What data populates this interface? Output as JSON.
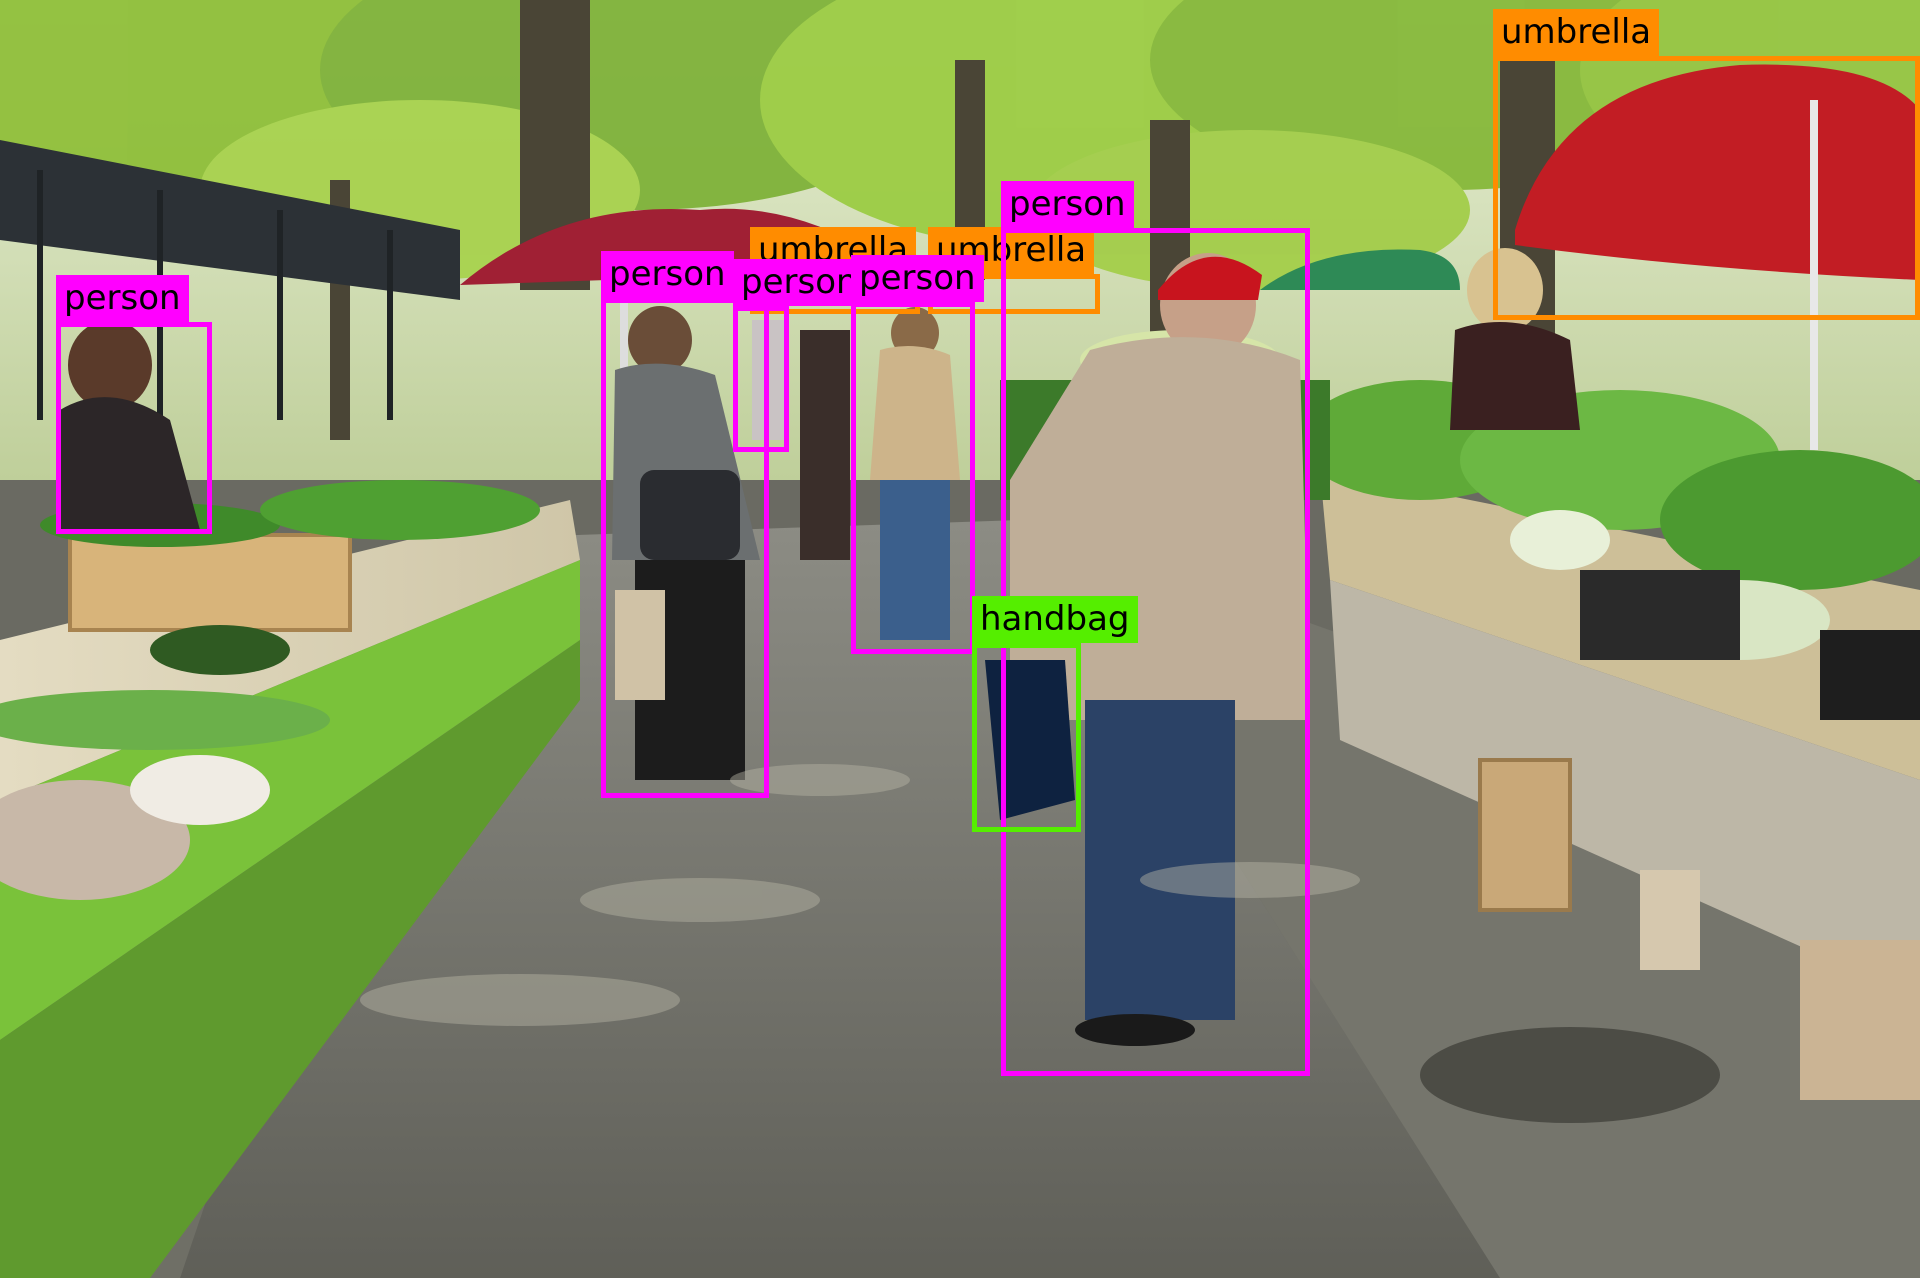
{
  "image": {
    "description_free_labels_only": true
  },
  "colors": {
    "person": "#ff00ff",
    "umbrella": "#ff8c00",
    "handbag": "#55ee00",
    "label_text": "#000000"
  },
  "detections": [
    {
      "label": "umbrella",
      "class": "umbrella"
    },
    {
      "label": "umbrella",
      "class": "umbrella"
    },
    {
      "label": "umbrella",
      "class": "umbrella"
    },
    {
      "label": "person",
      "class": "person"
    },
    {
      "label": "person",
      "class": "person"
    },
    {
      "label": "person",
      "class": "person"
    },
    {
      "label": "person",
      "class": "person"
    },
    {
      "label": "person",
      "class": "person"
    },
    {
      "label": "handbag",
      "class": "handbag"
    }
  ]
}
